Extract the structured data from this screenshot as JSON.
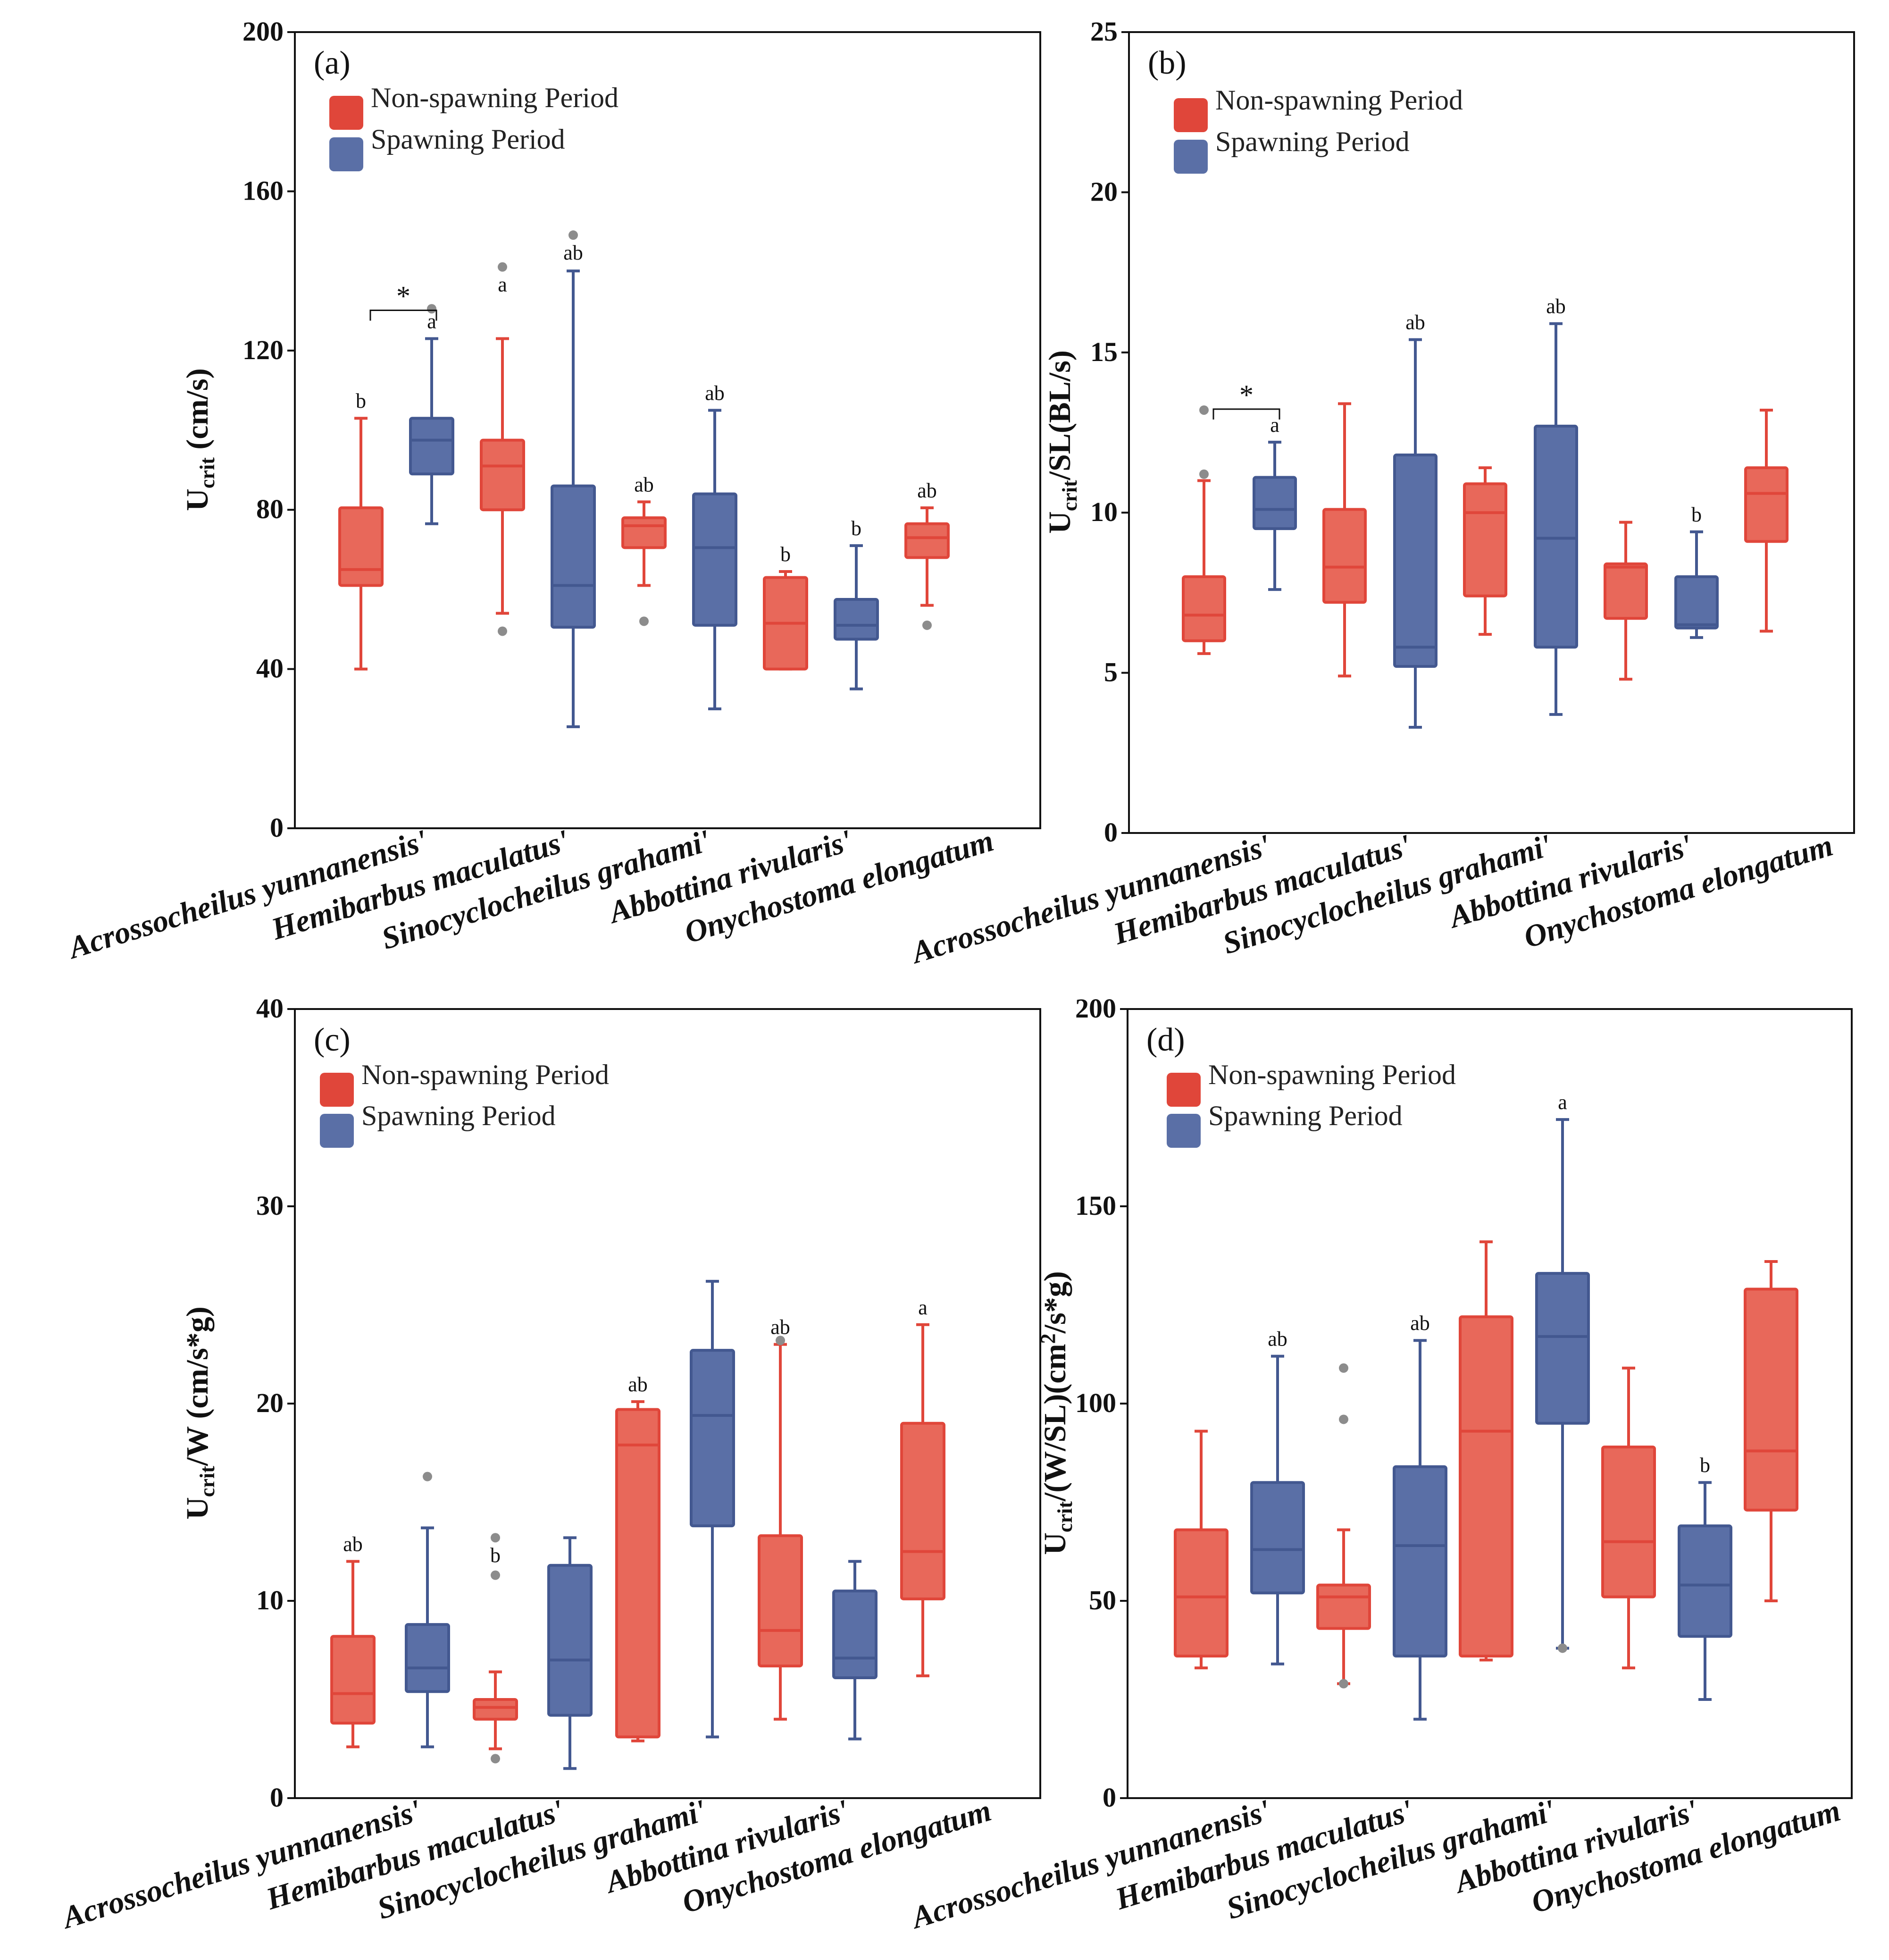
{
  "colors": {
    "non_spawning_fill": "#e8685a",
    "non_spawning_line": "#e0463a",
    "spawning_fill": "#5a6fa6",
    "spawning_line": "#435890",
    "outlier": "#8c8c8c"
  },
  "legend": {
    "non_spawning": "Non-spawning Period",
    "spawning": "Spawning Period"
  },
  "chart_data": [
    {
      "type": "box",
      "panel": "(a)",
      "title": "",
      "xlabel": "",
      "ylabel": "Ucrit (cm/s)",
      "ylabel_parts": {
        "main": "U",
        "sub": "crit",
        "rest": " (cm/s)"
      },
      "ylim": [
        0,
        200
      ],
      "yticks": [
        0,
        40,
        80,
        120,
        160,
        200
      ],
      "categories": [
        "Acrossocheilus yunnanensis'",
        "Hemibarbus maculatus'",
        "Sinocyclocheilus grahami'",
        "Abbottina rivularis'",
        "Onychostoma elongatum"
      ],
      "series": [
        {
          "name": "Non-spawning Period",
          "boxes": [
            {
              "whisker_low": 40,
              "q1": 61,
              "median": 65,
              "q3": 80.5,
              "whisker_high": 103,
              "outliers": [],
              "letter": "b"
            },
            {
              "whisker_low": 54,
              "q1": 80,
              "median": 91,
              "q3": 97.5,
              "whisker_high": 123,
              "outliers": [
                141,
                49.5
              ],
              "letter": "a"
            },
            {
              "whisker_low": 61,
              "q1": 70.5,
              "median": 76,
              "q3": 78,
              "whisker_high": 82,
              "outliers": [
                52
              ],
              "letter": "ab"
            },
            {
              "whisker_low": 40,
              "q1": 40,
              "median": 51.5,
              "q3": 63,
              "whisker_high": 64.5,
              "outliers": [],
              "letter": "b"
            },
            {
              "whisker_low": 56,
              "q1": 68,
              "median": 73,
              "q3": 76.5,
              "whisker_high": 80.5,
              "outliers": [
                51
              ],
              "letter": "ab"
            }
          ]
        },
        {
          "name": "Spawning Period",
          "boxes": [
            {
              "whisker_low": 76.5,
              "q1": 89,
              "median": 97.5,
              "q3": 103,
              "whisker_high": 123,
              "outliers": [
                130.5
              ],
              "letter": "a"
            },
            {
              "whisker_low": 25.5,
              "q1": 50.5,
              "median": 61,
              "q3": 86,
              "whisker_high": 140,
              "outliers": [
                149
              ],
              "letter": "ab"
            },
            {
              "whisker_low": 30,
              "q1": 51,
              "median": 70.5,
              "q3": 84,
              "whisker_high": 105,
              "outliers": [],
              "letter": "ab"
            },
            {
              "whisker_low": 35,
              "q1": 47.5,
              "median": 51,
              "q3": 57.5,
              "whisker_high": 71,
              "outliers": [],
              "letter": "b"
            }
          ]
        }
      ],
      "significance": [
        {
          "category_index": 0,
          "label": "*"
        }
      ]
    },
    {
      "type": "box",
      "panel": "(b)",
      "title": "",
      "xlabel": "",
      "ylabel": "Ucrit/SL(BL/s)",
      "ylabel_parts": {
        "main": "U",
        "sub": "crit",
        "rest": "/SL(BL/s)"
      },
      "ylim": [
        0,
        25
      ],
      "yticks": [
        0,
        5,
        10,
        15,
        20,
        25
      ],
      "categories": [
        "Acrossocheilus yunnanensis'",
        "Hemibarbus maculatus'",
        "Sinocyclocheilus grahami'",
        "Abbottina rivularis'",
        "Onychostoma elongatum"
      ],
      "series": [
        {
          "name": "Non-spawning Period",
          "boxes": [
            {
              "whisker_low": 5.6,
              "q1": 6.0,
              "median": 6.8,
              "q3": 8.0,
              "whisker_high": 11.0,
              "outliers": [
                13.2,
                11.2
              ],
              "letter": ""
            },
            {
              "whisker_low": 4.9,
              "q1": 7.2,
              "median": 8.3,
              "q3": 10.1,
              "whisker_high": 13.4,
              "outliers": [],
              "letter": ""
            },
            {
              "whisker_low": 6.2,
              "q1": 7.4,
              "median": 10.0,
              "q3": 10.9,
              "whisker_high": 11.4,
              "outliers": [],
              "letter": ""
            },
            {
              "whisker_low": 4.8,
              "q1": 6.7,
              "median": 8.3,
              "q3": 8.4,
              "whisker_high": 9.7,
              "outliers": [],
              "letter": ""
            },
            {
              "whisker_low": 6.3,
              "q1": 9.1,
              "median": 10.6,
              "q3": 11.4,
              "whisker_high": 13.2,
              "outliers": [],
              "letter": ""
            }
          ]
        },
        {
          "name": "Spawning Period",
          "boxes": [
            {
              "whisker_low": 7.6,
              "q1": 9.5,
              "median": 10.1,
              "q3": 11.1,
              "whisker_high": 12.2,
              "outliers": [],
              "letter": "a"
            },
            {
              "whisker_low": 3.3,
              "q1": 5.2,
              "median": 5.8,
              "q3": 11.8,
              "whisker_high": 15.4,
              "outliers": [],
              "letter": "ab"
            },
            {
              "whisker_low": 3.7,
              "q1": 5.8,
              "median": 9.2,
              "q3": 12.7,
              "whisker_high": 15.9,
              "outliers": [],
              "letter": "ab"
            },
            {
              "whisker_low": 6.1,
              "q1": 6.4,
              "median": 6.5,
              "q3": 8.0,
              "whisker_high": 9.4,
              "outliers": [],
              "letter": "b"
            }
          ]
        }
      ],
      "significance": [
        {
          "category_index": 0,
          "label": "*"
        }
      ]
    },
    {
      "type": "box",
      "panel": "(c)",
      "title": "",
      "xlabel": "",
      "ylabel": "Ucrit/W (cm/s*g)",
      "ylabel_parts": {
        "main": "U",
        "sub": "crit",
        "rest": "/W (cm/s*g)"
      },
      "ylim": [
        0,
        40
      ],
      "yticks": [
        0,
        10,
        20,
        30,
        40
      ],
      "categories": [
        "Acrossocheilus yunnanensis'",
        "Hemibarbus maculatus'",
        "Sinocyclocheilus grahami'",
        "Abbottina rivularis'",
        "Onychostoma elongatum"
      ],
      "series": [
        {
          "name": "Non-spawning Period",
          "boxes": [
            {
              "whisker_low": 2.6,
              "q1": 3.8,
              "median": 5.3,
              "q3": 8.2,
              "whisker_high": 12.0,
              "outliers": [],
              "letter": "ab"
            },
            {
              "whisker_low": 2.5,
              "q1": 4.0,
              "median": 4.6,
              "q3": 5.0,
              "whisker_high": 6.4,
              "outliers": [
                13.2,
                11.3,
                2.0
              ],
              "letter": "b"
            },
            {
              "whisker_low": 2.9,
              "q1": 3.1,
              "median": 17.9,
              "q3": 19.7,
              "whisker_high": 20.1,
              "outliers": [],
              "letter": "ab"
            },
            {
              "whisker_low": 4.0,
              "q1": 6.7,
              "median": 8.5,
              "q3": 13.3,
              "whisker_high": 23.0,
              "outliers": [
                23.2
              ],
              "letter": "ab"
            },
            {
              "whisker_low": 6.2,
              "q1": 10.1,
              "median": 12.5,
              "q3": 19.0,
              "whisker_high": 24.0,
              "outliers": [],
              "letter": "a"
            }
          ]
        },
        {
          "name": "Spawning Period",
          "boxes": [
            {
              "whisker_low": 2.6,
              "q1": 5.4,
              "median": 6.6,
              "q3": 8.8,
              "whisker_high": 13.7,
              "outliers": [
                16.3
              ],
              "letter": ""
            },
            {
              "whisker_low": 1.5,
              "q1": 4.2,
              "median": 7.0,
              "q3": 11.8,
              "whisker_high": 13.2,
              "outliers": [],
              "letter": ""
            },
            {
              "whisker_low": 3.1,
              "q1": 13.8,
              "median": 19.4,
              "q3": 22.7,
              "whisker_high": 26.2,
              "outliers": [],
              "letter": ""
            },
            {
              "whisker_low": 3.0,
              "q1": 6.1,
              "median": 7.1,
              "q3": 10.5,
              "whisker_high": 12.0,
              "outliers": [],
              "letter": ""
            }
          ]
        }
      ],
      "significance": []
    },
    {
      "type": "box",
      "panel": "(d)",
      "title": "",
      "xlabel": "",
      "ylabel": "Ucrit/(W/SL)(cm2/s*g)",
      "ylabel_parts": {
        "main": "U",
        "sub": "crit",
        "rest": "/(W/SL)(cm",
        "sup": "2",
        "rest2": "/s*g)"
      },
      "ylim": [
        0,
        200
      ],
      "yticks": [
        0,
        50,
        100,
        150,
        200
      ],
      "categories": [
        "Acrossocheilus yunnanensis'",
        "Hemibarbus maculatus'",
        "Sinocyclocheilus grahami'",
        "Abbottina rivularis'",
        "Onychostoma elongatum"
      ],
      "series": [
        {
          "name": "Non-spawning Period",
          "boxes": [
            {
              "whisker_low": 33,
              "q1": 36,
              "median": 51,
              "q3": 68,
              "whisker_high": 93,
              "outliers": [],
              "letter": ""
            },
            {
              "whisker_low": 29,
              "q1": 43,
              "median": 51,
              "q3": 54,
              "whisker_high": 68,
              "outliers": [
                109,
                96,
                29
              ],
              "letter": ""
            },
            {
              "whisker_low": 35,
              "q1": 36,
              "median": 93,
              "q3": 122,
              "whisker_high": 141,
              "outliers": [],
              "letter": ""
            },
            {
              "whisker_low": 33,
              "q1": 51,
              "median": 65,
              "q3": 89,
              "whisker_high": 109,
              "outliers": [],
              "letter": ""
            },
            {
              "whisker_low": 50,
              "q1": 73,
              "median": 88,
              "q3": 129,
              "whisker_high": 136,
              "outliers": [],
              "letter": ""
            }
          ]
        },
        {
          "name": "Spawning Period",
          "boxes": [
            {
              "whisker_low": 34,
              "q1": 52,
              "median": 63,
              "q3": 80,
              "whisker_high": 112,
              "outliers": [],
              "letter": "ab"
            },
            {
              "whisker_low": 20,
              "q1": 36,
              "median": 64,
              "q3": 84,
              "whisker_high": 116,
              "outliers": [],
              "letter": "ab"
            },
            {
              "whisker_low": 38,
              "q1": 95,
              "median": 117,
              "q3": 133,
              "whisker_high": 172,
              "outliers": [
                38
              ],
              "letter": "a"
            },
            {
              "whisker_low": 25,
              "q1": 41,
              "median": 54,
              "q3": 69,
              "whisker_high": 80,
              "outliers": [],
              "letter": "b"
            }
          ]
        }
      ],
      "significance": []
    }
  ]
}
